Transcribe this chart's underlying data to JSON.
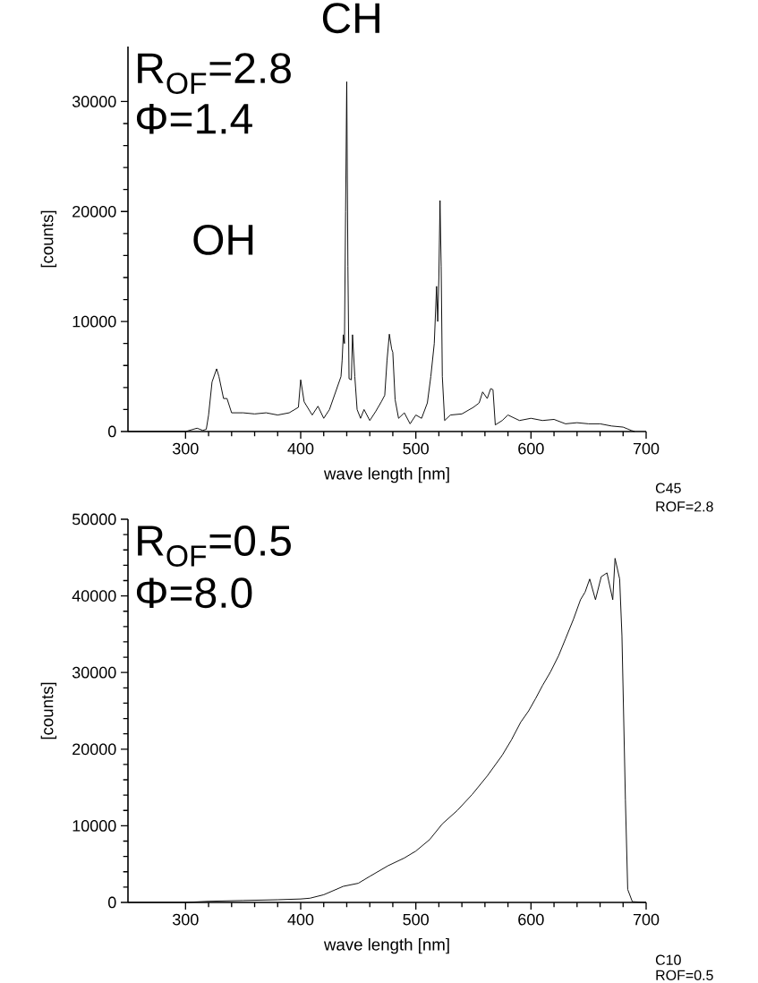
{
  "chart_data": [
    {
      "type": "line",
      "xlabel": "wave length [nm]",
      "ylabel": "[counts]",
      "color": "#000000",
      "xlim": [
        250,
        700
      ],
      "ylim": [
        0,
        35000
      ],
      "xticks": [
        300,
        400,
        500,
        600,
        700
      ],
      "yticks": [
        0,
        10000,
        20000,
        30000
      ],
      "annotations": [
        "CH",
        "OH",
        "R$_{OF}$=2.8",
        "Φ=1.4",
        "C45",
        "ROF=2.8"
      ],
      "x": [
        250,
        300,
        310,
        315,
        318,
        320,
        323,
        327,
        329,
        333,
        336,
        340,
        350,
        360,
        370,
        380,
        390,
        398,
        400,
        403,
        410,
        415,
        420,
        425,
        430,
        435,
        436,
        437,
        438,
        439,
        440,
        441,
        442,
        444,
        445,
        447,
        449,
        452,
        455,
        460,
        465,
        470,
        473,
        475,
        477,
        479,
        480,
        482,
        485,
        490,
        495,
        500,
        505,
        510,
        513,
        516,
        518,
        519,
        520,
        521,
        522,
        523,
        525,
        530,
        540,
        550,
        555,
        558,
        562,
        565,
        567,
        569,
        575,
        580,
        590,
        600,
        610,
        620,
        630,
        640,
        650,
        660,
        670,
        680,
        687,
        690
      ],
      "values": [
        0,
        0,
        300,
        100,
        200,
        1500,
        4500,
        5700,
        5000,
        3000,
        3000,
        1700,
        1700,
        1600,
        1700,
        1500,
        1700,
        2200,
        4700,
        2700,
        1500,
        2300,
        1200,
        2000,
        3500,
        5000,
        6500,
        8800,
        8000,
        20000,
        31800,
        15000,
        4800,
        4700,
        8800,
        5000,
        2000,
        1200,
        2000,
        1000,
        1800,
        2700,
        3300,
        6500,
        8850,
        7500,
        7200,
        2900,
        1200,
        1700,
        700,
        1500,
        1200,
        2600,
        5000,
        8000,
        13200,
        10000,
        14000,
        21000,
        15000,
        5000,
        1000,
        1500,
        1600,
        2200,
        2600,
        3600,
        3000,
        3900,
        3800,
        600,
        1000,
        1500,
        1000,
        1200,
        1000,
        1100,
        700,
        800,
        700,
        700,
        500,
        400,
        100,
        0
      ]
    },
    {
      "type": "line",
      "xlabel": "wave length [nm]",
      "ylabel": "[counts]",
      "color": "#000000",
      "xlim": [
        250,
        700
      ],
      "ylim": [
        0,
        50000
      ],
      "xticks": [
        300,
        400,
        500,
        600,
        700
      ],
      "yticks": [
        0,
        10000,
        20000,
        30000,
        40000,
        50000
      ],
      "annotations": [
        "R$_{OF}$=0.5",
        "Φ=8.0",
        "C10",
        "ROF=0.5"
      ],
      "x": [
        250,
        300,
        320,
        350,
        380,
        400,
        408,
        420,
        437,
        450,
        460,
        476,
        490,
        500,
        512,
        523,
        536,
        549,
        562,
        575,
        583,
        591,
        598,
        604,
        610,
        617,
        624,
        630,
        637,
        643,
        647,
        651,
        656,
        661,
        666,
        671,
        673,
        677,
        679,
        682,
        684,
        688,
        700
      ],
      "values": [
        0,
        0,
        150,
        250,
        350,
        450,
        550,
        1000,
        2100,
        2500,
        3400,
        4800,
        5800,
        6700,
        8200,
        10250,
        12000,
        14100,
        16500,
        19200,
        21200,
        23500,
        25000,
        26600,
        28300,
        30100,
        32200,
        34400,
        37000,
        39500,
        40500,
        42200,
        39500,
        42500,
        43000,
        39500,
        44900,
        42200,
        34800,
        13400,
        1700,
        100,
        0
      ]
    }
  ]
}
